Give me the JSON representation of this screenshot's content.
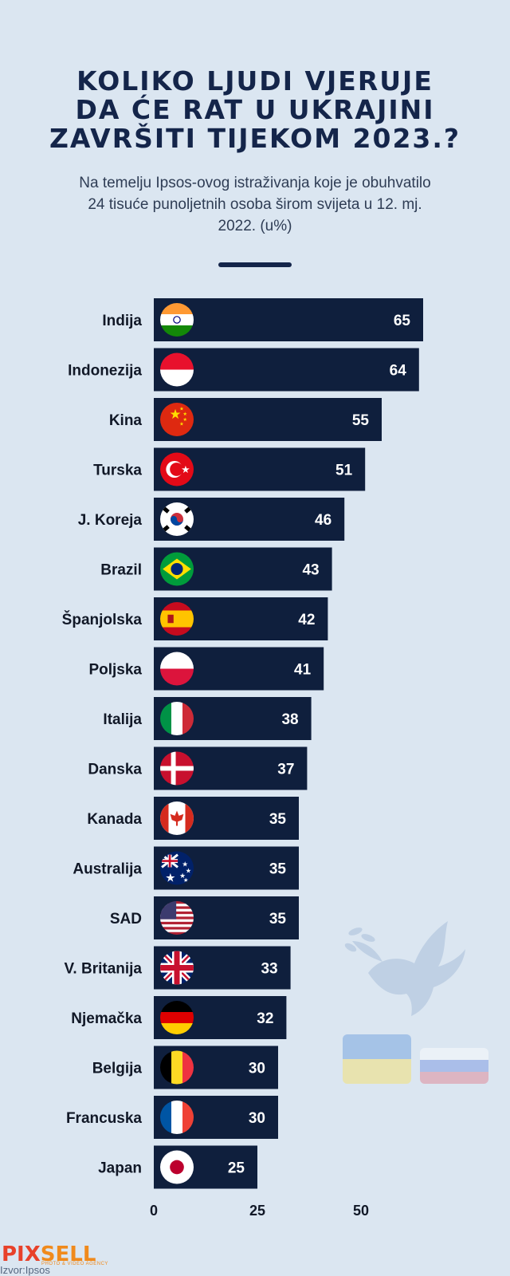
{
  "title_lines": [
    "KOLIKO LJUDI VJERUJE",
    "DA ĆE RAT U UKRAJINI",
    "ZAVRŠITI TIJEKOM 2023.?"
  ],
  "subtitle_lines": [
    "Na temelju Ipsos-ovog istraživanja koje je obuhvatilo",
    "24 tisuće punoljetnih osoba širom svijeta u 12. mj.",
    "2022. (u%)"
  ],
  "logo": {
    "part1": "PIX",
    "part2": "SELL",
    "tagline": "PHOTO & VIDEO AGENCY"
  },
  "source": "Izvor:Ipsos",
  "colors": {
    "background": "#dbe6f1",
    "bar": "#0f1f3d",
    "title": "#14254a",
    "bar_label": "#ffffff"
  },
  "chart_data": {
    "type": "bar",
    "orientation": "horizontal",
    "title": "KOLIKO LJUDI VJERUJE DA ĆE RAT U UKRAJINI ZAVRŠITI TIJEKOM 2023.?",
    "categories": [
      "Indija",
      "Indonezija",
      "Kina",
      "Turska",
      "J. Koreja",
      "Brazil",
      "Španjolska",
      "Poljska",
      "Italija",
      "Danska",
      "Kanada",
      "Australija",
      "SAD",
      "V. Britanija",
      "Njemačka",
      "Belgija",
      "Francuska",
      "Japan"
    ],
    "values": [
      65,
      64,
      55,
      51,
      46,
      43,
      42,
      41,
      38,
      37,
      35,
      35,
      35,
      33,
      32,
      30,
      30,
      25
    ],
    "flags": [
      "india",
      "indonesia",
      "china",
      "turkey",
      "south-korea",
      "brazil",
      "spain",
      "poland",
      "italy",
      "denmark",
      "canada",
      "australia",
      "usa",
      "uk",
      "germany",
      "belgium",
      "france",
      "japan"
    ],
    "xticks": [
      0,
      25,
      50
    ],
    "xlim": [
      0,
      65
    ],
    "grid": false,
    "legend": "none"
  }
}
